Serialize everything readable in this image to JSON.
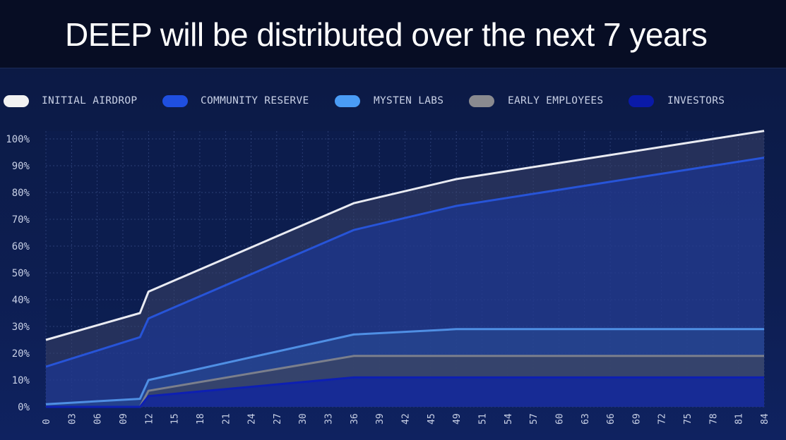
{
  "title": "DEEP will be distributed over the next 7 years",
  "legend": [
    {
      "label": "INITIAL AIRDROP",
      "color": "#f2f2f2"
    },
    {
      "label": "COMMUNITY RESERVE",
      "color": "#1f4fe0"
    },
    {
      "label": "MYSTEN LABS",
      "color": "#4a9cf5"
    },
    {
      "label": "EARLY EMPLOYEES",
      "color": "#8a8a8f"
    },
    {
      "label": "INVESTORS",
      "color": "#0a1aa8"
    }
  ],
  "chart_data": {
    "type": "area",
    "x_ticks": [
      "0",
      "03",
      "06",
      "09",
      "12",
      "15",
      "18",
      "21",
      "24",
      "27",
      "30",
      "33",
      "36",
      "39",
      "42",
      "45",
      "49",
      "51",
      "54",
      "57",
      "60",
      "63",
      "66",
      "69",
      "72",
      "75",
      "78",
      "81",
      "84"
    ],
    "y_ticks": [
      "0%",
      "10%",
      "20%",
      "30%",
      "40%",
      "50%",
      "60%",
      "70%",
      "80%",
      "90%",
      "100%"
    ],
    "ylim": [
      0,
      100
    ],
    "xlim": [
      0,
      84
    ],
    "grid": true,
    "legend_position": "top",
    "series": [
      {
        "name": "INITIAL AIRDROP",
        "color": "#e9ebf2",
        "x": [
          0,
          11,
          12,
          36,
          48,
          84
        ],
        "y": [
          25,
          35,
          43,
          76,
          85,
          103
        ]
      },
      {
        "name": "COMMUNITY RESERVE",
        "color": "#2754d8",
        "x": [
          0,
          11,
          12,
          36,
          48,
          84
        ],
        "y": [
          15,
          26,
          33,
          66,
          75,
          93
        ]
      },
      {
        "name": "MYSTEN LABS",
        "color": "#4f8fe4",
        "x": [
          0,
          11,
          12,
          36,
          48,
          84
        ],
        "y": [
          1,
          3,
          10,
          27,
          29,
          29
        ]
      },
      {
        "name": "EARLY EMPLOYEES",
        "color": "#7b7f8c",
        "x": [
          0,
          11,
          12,
          36,
          48,
          84
        ],
        "y": [
          0,
          0,
          6,
          19,
          19,
          19
        ]
      },
      {
        "name": "INVESTORS",
        "color": "#0d1fb3",
        "x": [
          0,
          11,
          12,
          36,
          48,
          84
        ],
        "y": [
          0,
          0,
          4,
          11,
          11,
          11
        ]
      }
    ]
  }
}
